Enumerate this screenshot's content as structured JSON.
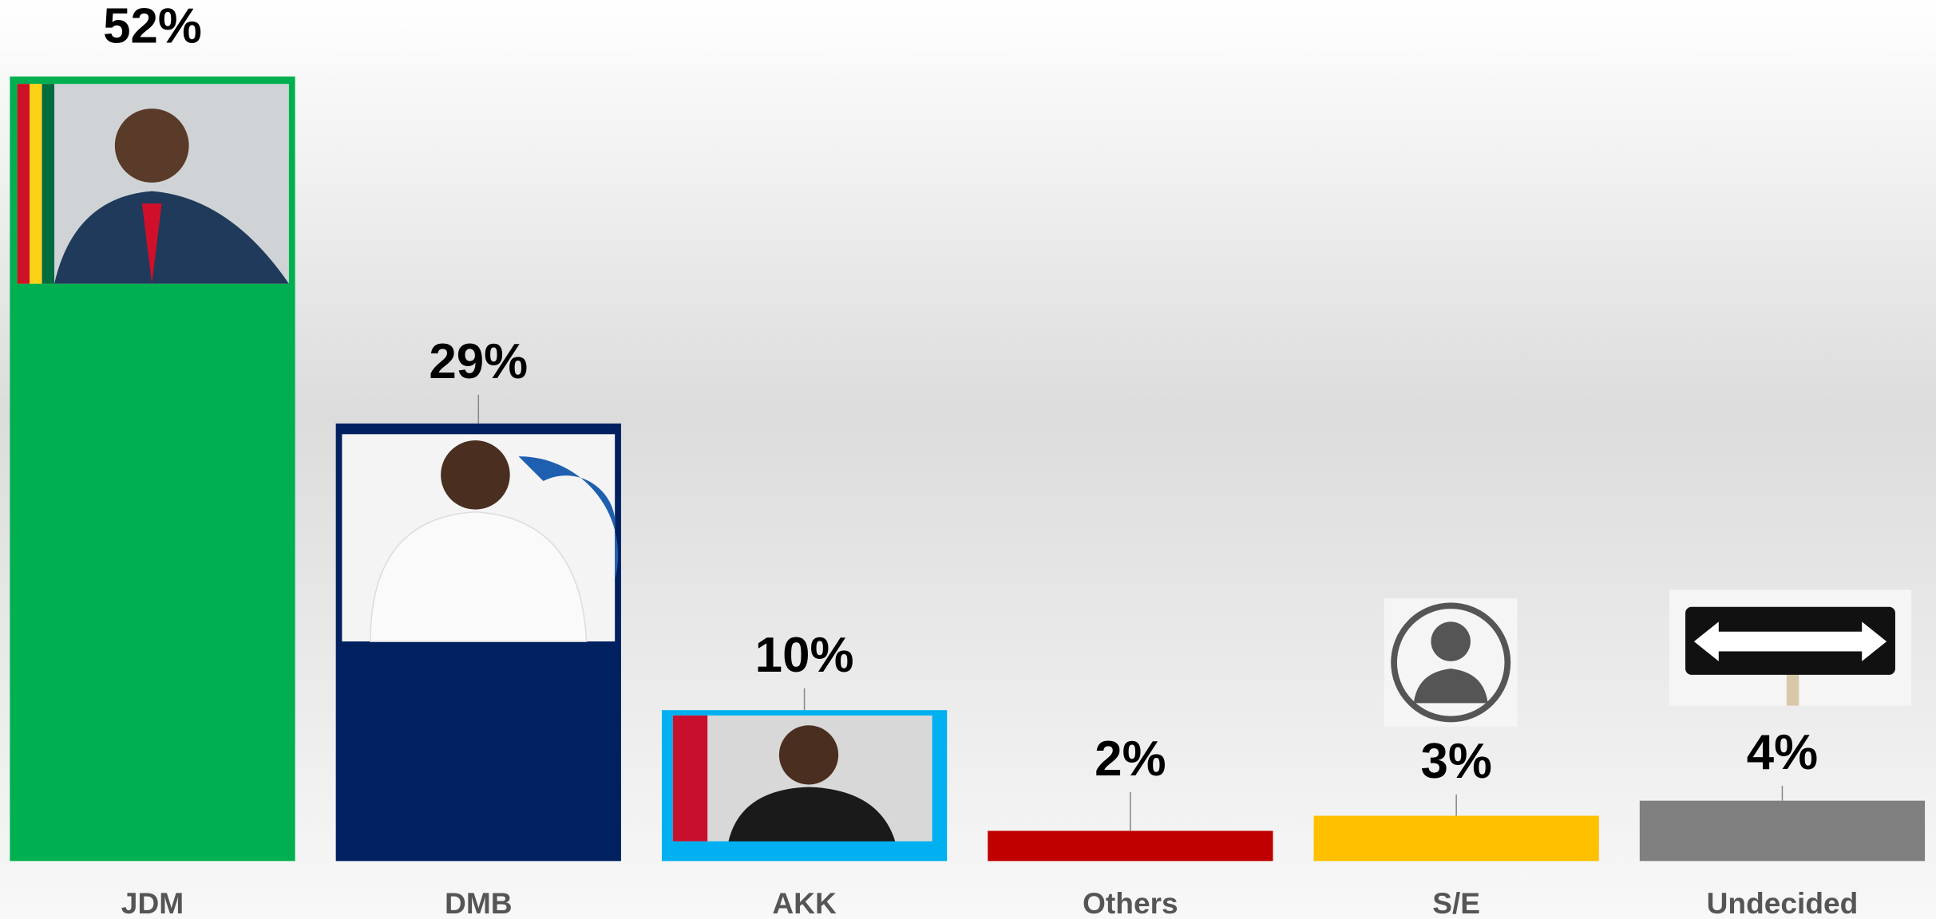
{
  "chart_data": {
    "type": "bar",
    "categories": [
      "JDM",
      "DMB",
      "AKK",
      "Others",
      "S/E",
      "Undecided"
    ],
    "values": [
      52,
      29,
      10,
      2,
      3,
      4
    ],
    "value_labels": [
      "52%",
      "29%",
      "10%",
      "2%",
      "3%",
      "4%"
    ],
    "colors": [
      "#00b050",
      "#002060",
      "#00b0f0",
      "#c00000",
      "#ffc000",
      "#808080"
    ],
    "grid": false
  }
}
